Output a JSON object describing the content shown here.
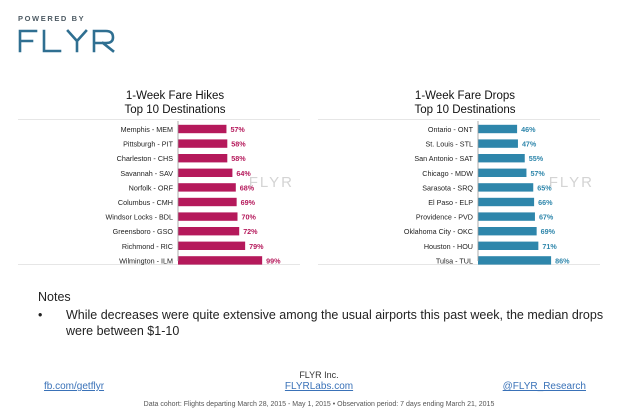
{
  "brand": {
    "powered_by": "POWERED BY",
    "logo": "FLYR",
    "logo_color": "#2f6f91"
  },
  "notes": {
    "heading": "Notes",
    "bullet": "•",
    "items": [
      "While decreases were quite extensive among the usual airports this past week, the median drops were between $1-10"
    ]
  },
  "footer": {
    "company": "FLYR Inc.",
    "links": [
      "fb.com/getflyr",
      "FLYRLabs.com",
      "@FLYR_Research"
    ],
    "cohort": "Data cohort: Flights departing March 28, 2015 - May 1, 2015 • Observation period: 7 days ending March 21, 2015"
  },
  "chart_data": [
    {
      "type": "bar",
      "orientation": "horizontal",
      "title_lines": [
        "1-Week Fare Hikes",
        "Top 10 Destinations"
      ],
      "categories": [
        "Memphis - MEM",
        "Pittsburgh - PIT",
        "Charleston - CHS",
        "Savannah - SAV",
        "Norfolk - ORF",
        "Columbus - CMH",
        "Windsor Locks - BDL",
        "Greensboro - GSO",
        "Richmond - RIC",
        "Wilmington - ILM"
      ],
      "values": [
        57,
        58,
        58,
        64,
        68,
        69,
        70,
        72,
        79,
        99
      ],
      "value_labels": [
        "57%",
        "58%",
        "58%",
        "64%",
        "68%",
        "69%",
        "70%",
        "72%",
        "79%",
        "99%"
      ],
      "color": "#b5195b",
      "watermark": "FLYR"
    },
    {
      "type": "bar",
      "orientation": "horizontal",
      "title_lines": [
        "1-Week Fare Drops",
        "Top 10 Destinations"
      ],
      "categories": [
        "Ontario - ONT",
        "St. Louis - STL",
        "San Antonio - SAT",
        "Chicago - MDW",
        "Sarasota - SRQ",
        "El Paso - ELP",
        "Providence - PVD",
        "Oklahoma City - OKC",
        "Houston - HOU",
        "Tulsa - TUL"
      ],
      "values": [
        46,
        47,
        55,
        57,
        65,
        66,
        67,
        69,
        71,
        86
      ],
      "value_labels": [
        "46%",
        "47%",
        "55%",
        "57%",
        "65%",
        "66%",
        "67%",
        "69%",
        "71%",
        "86%"
      ],
      "color": "#2e86ab",
      "watermark": "FLYR"
    }
  ]
}
